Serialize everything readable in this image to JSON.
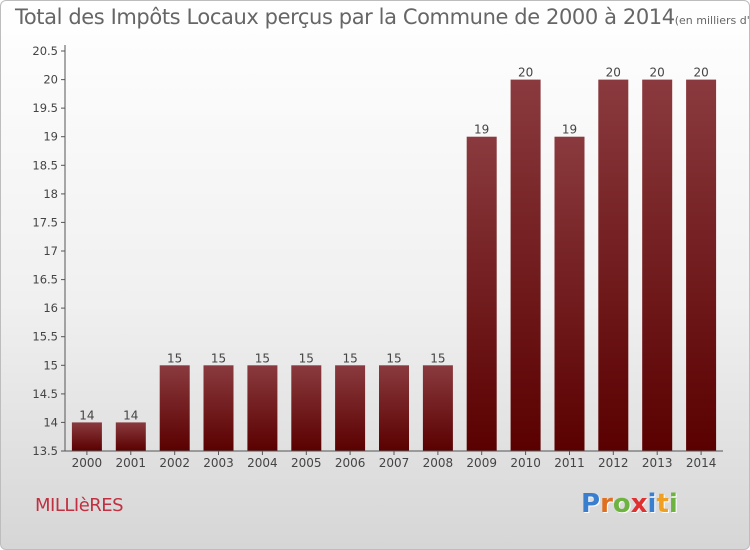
{
  "title": "Total des Impôts Locaux perçus par la Commune de 2000 à 2014",
  "title_unit": "(en milliers d'€)",
  "commune": "MILLIèRES",
  "logo": {
    "letters": [
      "P",
      "r",
      "o",
      "x",
      "i",
      "t",
      "i"
    ],
    "colors": [
      "#3a7fcf",
      "#e07020",
      "#6db33f",
      "#e03030",
      "#3a7fcf",
      "#f0a020",
      "#6db33f"
    ]
  },
  "chart_data": {
    "type": "bar",
    "categories": [
      "2000",
      "2001",
      "2002",
      "2003",
      "2004",
      "2005",
      "2006",
      "2007",
      "2008",
      "2009",
      "2010",
      "2011",
      "2012",
      "2013",
      "2014"
    ],
    "values": [
      14,
      14,
      15,
      15,
      15,
      15,
      15,
      15,
      15,
      19,
      20,
      19,
      20,
      20,
      20
    ],
    "value_labels": [
      "14",
      "14",
      "15",
      "15",
      "15",
      "15",
      "15",
      "15",
      "15",
      "19",
      "20",
      "19",
      "20",
      "20",
      "20"
    ],
    "ylim": [
      13.5,
      20.5
    ],
    "yticks": [
      "13.5",
      "14",
      "14.5",
      "15",
      "15.5",
      "16",
      "16.5",
      "17",
      "17.5",
      "18",
      "18.5",
      "19",
      "19.5",
      "20",
      "20.5"
    ],
    "grid": false,
    "bar_color_top": "#8a3a3e",
    "bar_color_bottom": "#5a0000"
  }
}
